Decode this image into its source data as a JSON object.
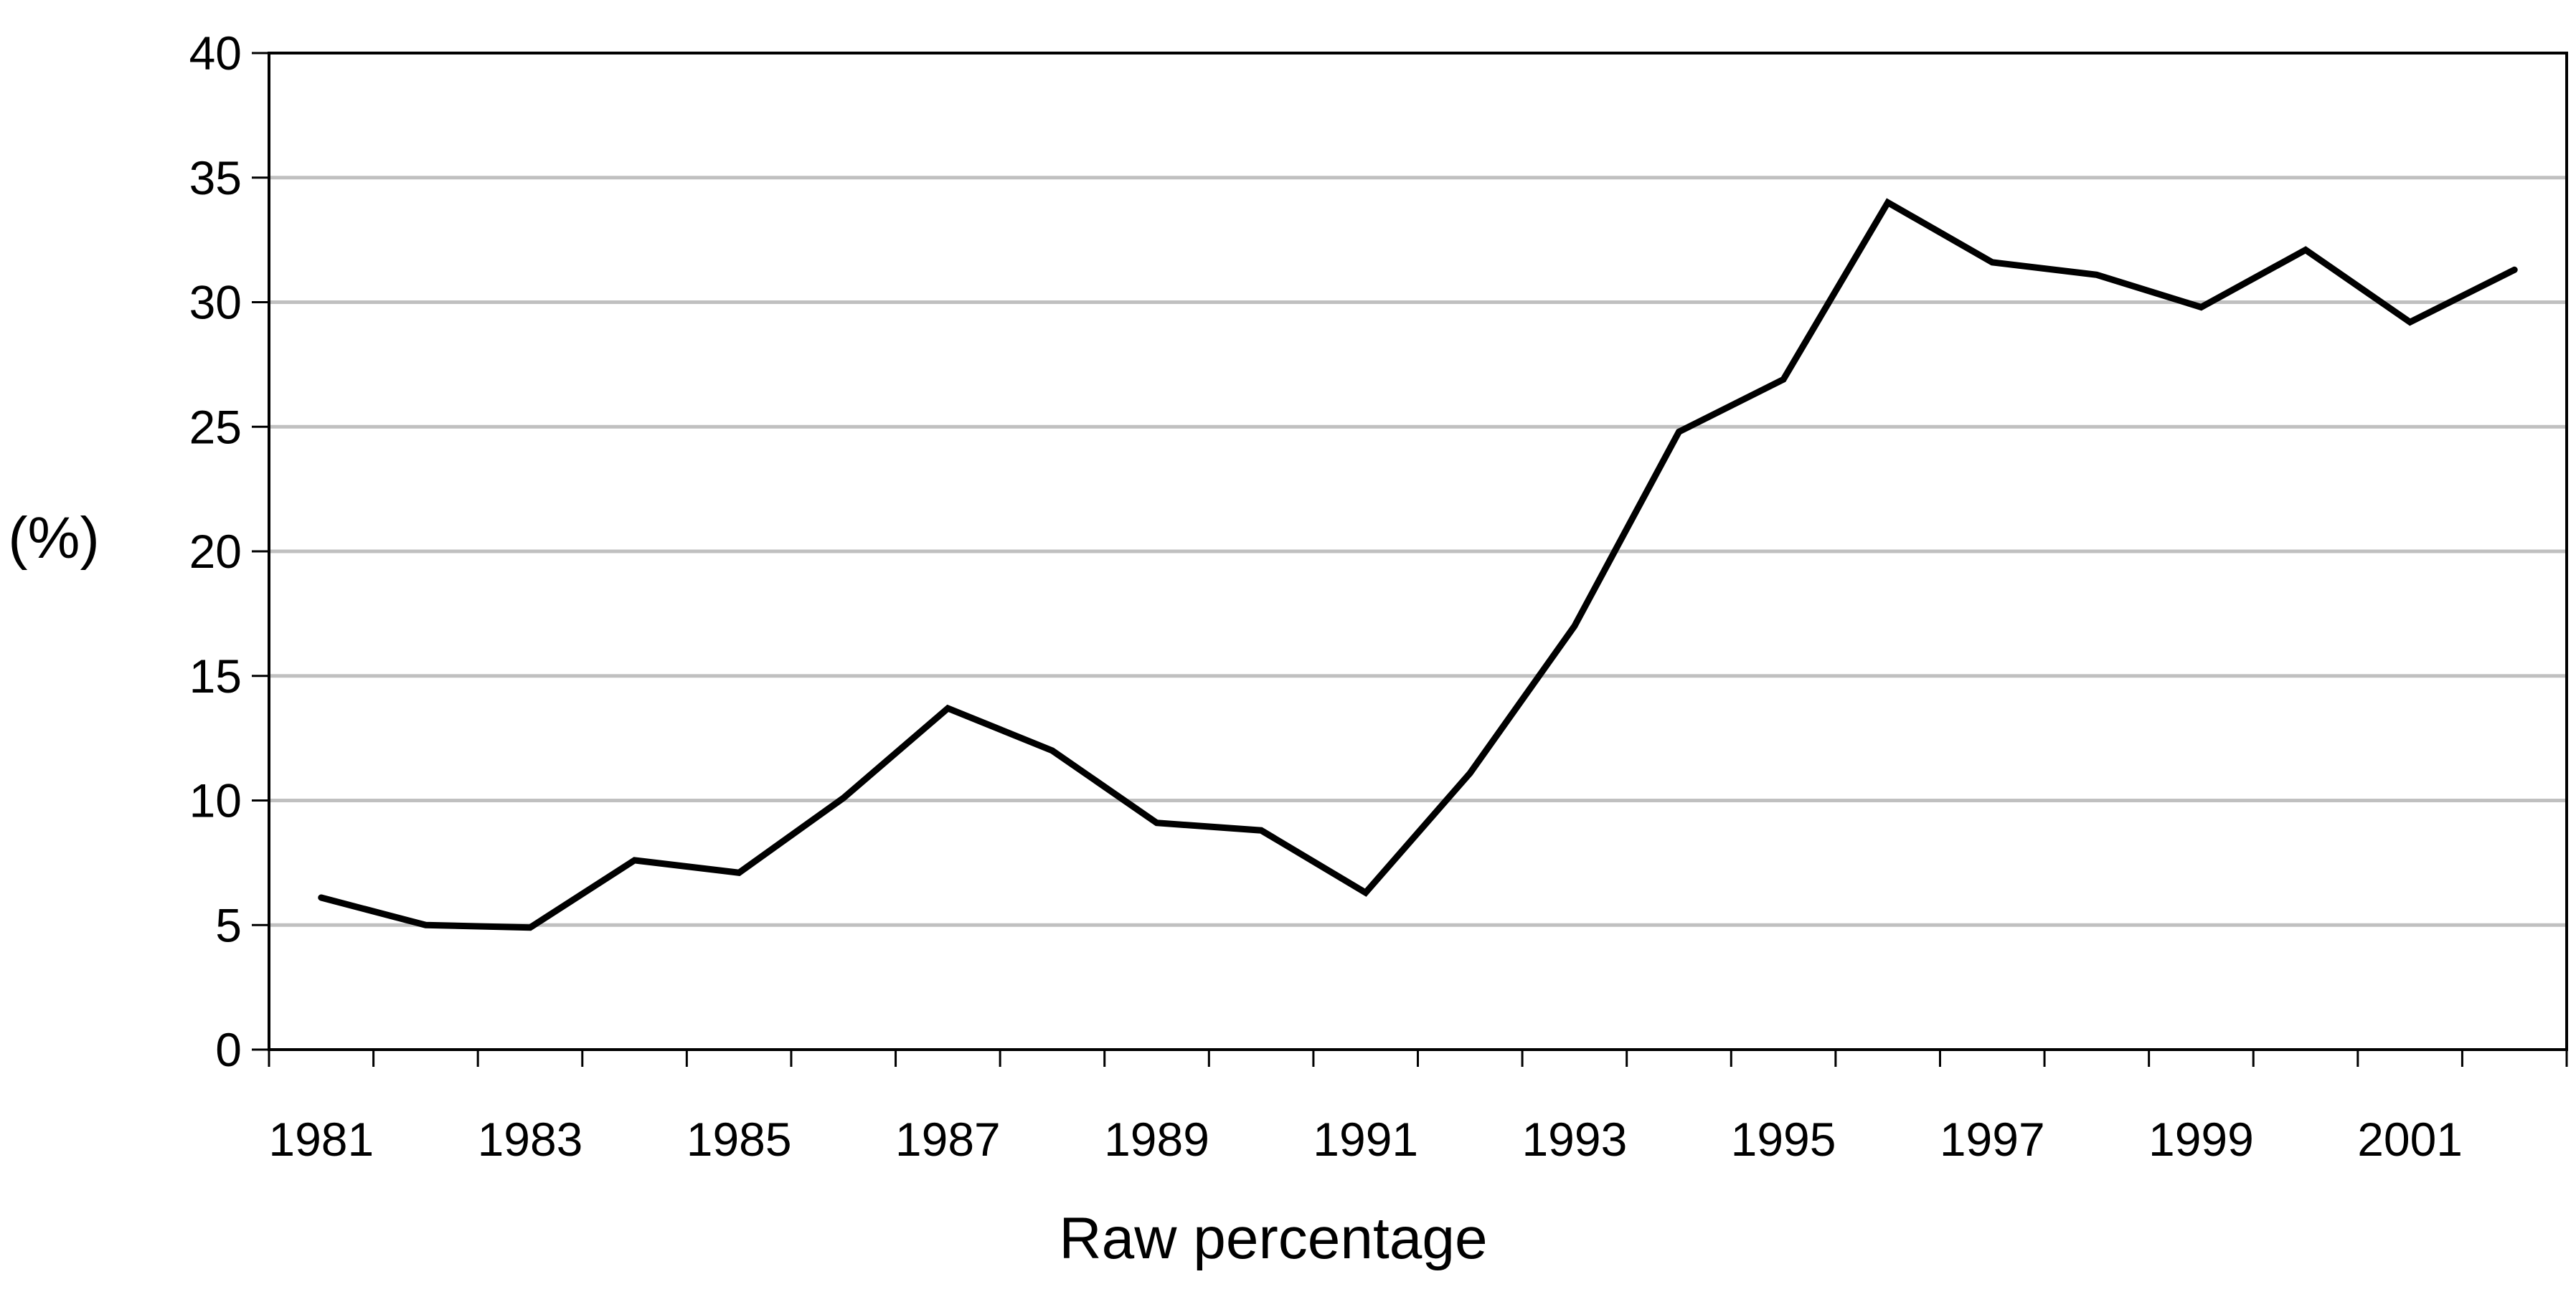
{
  "chart_data": {
    "type": "line",
    "title": "",
    "xlabel": "Raw percentage",
    "ylabel": "(%)",
    "x": [
      1981,
      1982,
      1983,
      1984,
      1985,
      1986,
      1987,
      1988,
      1989,
      1990,
      1991,
      1992,
      1993,
      1994,
      1995,
      1996,
      1997,
      1998,
      1999,
      2000,
      2001,
      2002
    ],
    "series": [
      {
        "values": [
          6.1,
          5.0,
          4.9,
          7.6,
          7.1,
          10.1,
          13.7,
          12.0,
          9.1,
          8.8,
          6.3,
          11.1,
          17.0,
          24.8,
          26.9,
          34.0,
          31.6,
          31.1,
          29.8,
          32.1,
          29.2,
          31.3
        ]
      }
    ],
    "xlim": [
      1980.5,
      2002.5
    ],
    "ylim": [
      0,
      40
    ],
    "yticks": [
      "0",
      "5",
      "10",
      "15",
      "20",
      "25",
      "30",
      "35",
      "40"
    ],
    "xtick_labels": [
      "1981",
      "1983",
      "1985",
      "1987",
      "1989",
      "1991",
      "1993",
      "1995",
      "1997",
      "1999",
      "2001"
    ],
    "grid": "horizontal",
    "legend": "none",
    "colors": {
      "line": "#000000",
      "grid": "#c0c0c0",
      "axis": "#000000"
    }
  }
}
